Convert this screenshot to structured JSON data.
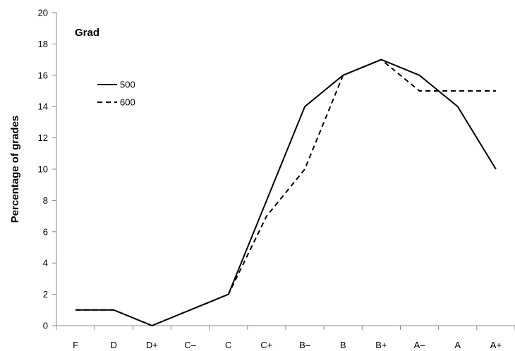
{
  "chart_data": {
    "type": "line",
    "title": "Grad",
    "xlabel": "",
    "ylabel": "Percentage of grades",
    "categories": [
      "F",
      "D",
      "D+",
      "C–",
      "C",
      "C+",
      "B–",
      "B",
      "B+",
      "A–",
      "A",
      "A+"
    ],
    "ylim": [
      0,
      20
    ],
    "yticks": [
      0,
      2,
      4,
      6,
      8,
      10,
      12,
      14,
      16,
      18,
      20
    ],
    "grid": false,
    "legend_position": "top-left",
    "series": [
      {
        "name": "500",
        "style": "solid",
        "color": "#000000",
        "values": [
          1,
          1,
          0,
          1,
          2,
          8,
          14,
          16,
          17,
          16,
          14,
          10
        ]
      },
      {
        "name": "600",
        "style": "dashed",
        "color": "#000000",
        "values": [
          1,
          1,
          0,
          1,
          2,
          7,
          10,
          16,
          17,
          15,
          15,
          15
        ]
      }
    ]
  }
}
